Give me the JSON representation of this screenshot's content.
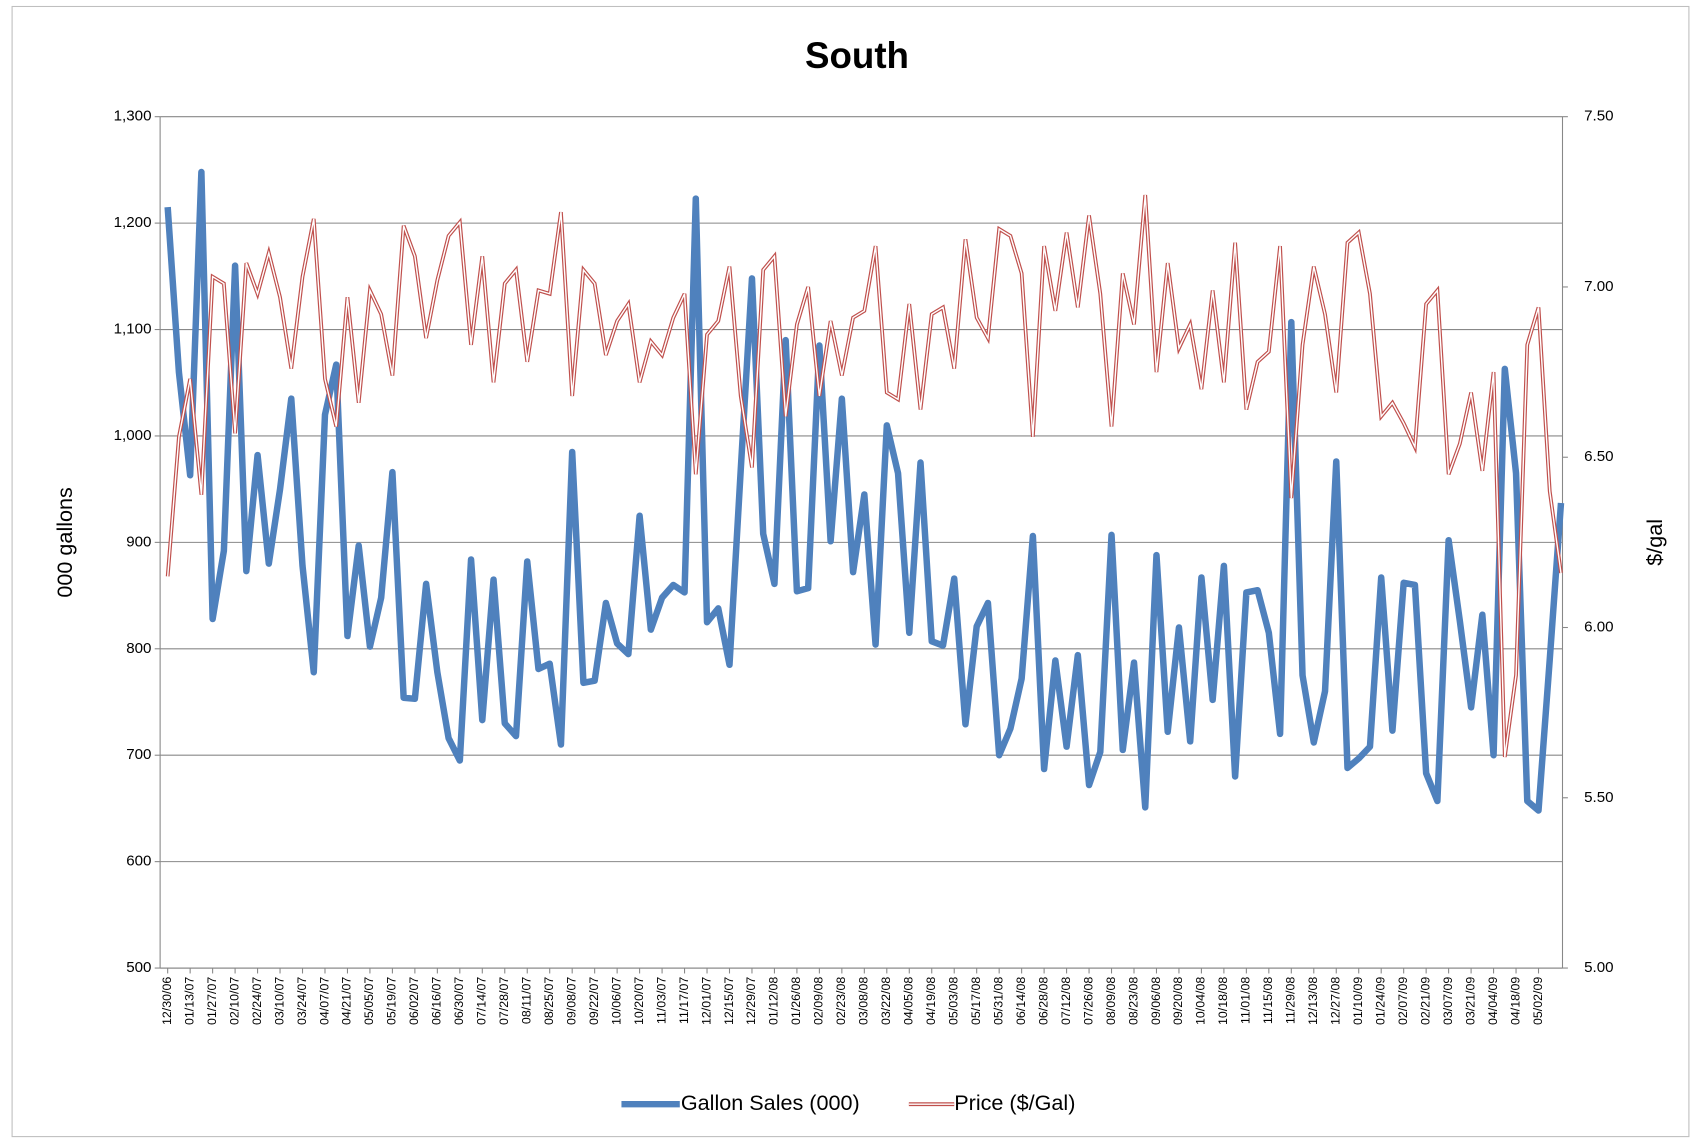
{
  "chart_data": {
    "type": "line",
    "title": "South",
    "y_label": "000 gallons",
    "y2_label": "$/gal",
    "grid": true,
    "legend": "bottom",
    "categories": [
      "12/30/06",
      null,
      "01/13/07",
      null,
      "01/27/07",
      null,
      "02/10/07",
      null,
      "02/24/07",
      null,
      "03/10/07",
      null,
      "03/24/07",
      null,
      "04/07/07",
      null,
      "04/21/07",
      null,
      "05/05/07",
      null,
      "05/19/07",
      null,
      "06/02/07",
      null,
      "06/16/07",
      null,
      "06/30/07",
      null,
      "07/14/07",
      null,
      "07/28/07",
      null,
      "08/11/07",
      null,
      "08/25/07",
      null,
      "09/08/07",
      null,
      "09/22/07",
      null,
      "10/06/07",
      null,
      "10/20/07",
      null,
      "11/03/07",
      null,
      "11/17/07",
      null,
      "12/01/07",
      null,
      "12/15/07",
      null,
      "12/29/07",
      null,
      "01/12/08",
      null,
      "01/26/08",
      null,
      "02/09/08",
      null,
      "02/23/08",
      null,
      "03/08/08",
      null,
      "03/22/08",
      null,
      "04/05/08",
      null,
      "04/19/08",
      null,
      "05/03/08",
      null,
      "05/17/08",
      null,
      "05/31/08",
      null,
      "06/14/08",
      null,
      "06/28/08",
      null,
      "07/12/08",
      null,
      "07/26/08",
      null,
      "08/09/08",
      null,
      "08/23/08",
      null,
      "09/06/08",
      null,
      "09/20/08",
      null,
      "10/04/08",
      null,
      "10/18/08",
      null,
      "11/01/08",
      null,
      "11/15/08",
      null,
      "11/29/08",
      null,
      "12/13/08",
      null,
      "12/27/08",
      null,
      "01/10/09",
      null,
      "01/24/09",
      null,
      "02/07/09",
      null,
      "02/21/09",
      null,
      "03/07/09",
      null,
      "03/21/09",
      null,
      "04/04/09",
      null,
      "04/18/09",
      null,
      "05/02/09",
      null,
      null
    ],
    "series": [
      {
        "name": "Gallon Sales (000)",
        "color": "#4f81bd",
        "axis": "y",
        "values": [
          1215,
          1060,
          963,
          1248,
          828,
          892,
          1160,
          873,
          982,
          880,
          950,
          1035,
          878,
          778,
          1020,
          1067,
          812,
          897,
          802,
          848,
          966,
          754,
          753,
          861,
          778,
          716,
          695,
          884,
          733,
          865,
          730,
          718,
          882,
          781,
          786,
          710,
          985,
          768,
          770,
          843,
          805,
          795,
          925,
          818,
          848,
          860,
          853,
          1223,
          825,
          838,
          785,
          968,
          1148,
          908,
          861,
          1090,
          854,
          857,
          1085,
          901,
          1035,
          872,
          945,
          804,
          1010,
          965,
          815,
          975,
          807,
          803,
          866,
          729,
          821,
          843,
          700,
          725,
          772,
          906,
          687,
          789,
          708,
          794,
          672,
          703,
          907,
          705,
          787,
          651,
          888,
          722,
          820,
          713,
          867,
          752,
          878,
          680,
          853,
          855,
          815,
          720,
          1107,
          775,
          712,
          760,
          976,
          688,
          697,
          708,
          867,
          723,
          862,
          860,
          683,
          657,
          902,
          826,
          745,
          832,
          700,
          1063,
          965,
          657,
          648,
          790,
          937
        ]
      },
      {
        "name": "Price ($/Gal)",
        "color": "#c0504d",
        "axis": "y2",
        "values": [
          6.15,
          6.56,
          6.73,
          6.39,
          7.03,
          7.01,
          6.57,
          7.07,
          6.98,
          7.1,
          6.97,
          6.76,
          7.03,
          7.2,
          6.73,
          6.59,
          6.97,
          6.66,
          6.99,
          6.92,
          6.74,
          7.18,
          7.09,
          6.85,
          7.02,
          7.15,
          7.19,
          6.83,
          7.09,
          6.72,
          7.01,
          7.05,
          6.78,
          6.99,
          6.98,
          7.22,
          6.68,
          7.05,
          7.01,
          6.8,
          6.9,
          6.95,
          6.72,
          6.84,
          6.8,
          6.91,
          6.98,
          6.45,
          6.86,
          6.9,
          7.06,
          6.68,
          6.47,
          7.05,
          7.09,
          6.62,
          6.89,
          7.0,
          6.68,
          6.9,
          6.74,
          6.91,
          6.93,
          7.12,
          6.69,
          6.67,
          6.95,
          6.64,
          6.92,
          6.94,
          6.76,
          7.14,
          6.91,
          6.85,
          7.17,
          7.15,
          7.04,
          6.56,
          7.12,
          6.93,
          7.16,
          6.94,
          7.21,
          6.98,
          6.59,
          7.04,
          6.89,
          7.27,
          6.75,
          7.07,
          6.82,
          6.89,
          6.7,
          6.99,
          6.72,
          7.13,
          6.64,
          6.78,
          6.81,
          7.12,
          6.38,
          6.83,
          7.06,
          6.92,
          6.69,
          7.13,
          7.16,
          6.98,
          6.62,
          6.66,
          6.6,
          6.53,
          6.95,
          6.99,
          6.45,
          6.54,
          6.69,
          6.46,
          6.75,
          5.62,
          5.86,
          6.83,
          6.94,
          6.4,
          6.16
        ]
      }
    ],
    "ylim": [
      500,
      1300
    ],
    "yticks": [
      500,
      600,
      700,
      800,
      900,
      {
        "value": 1000,
        "label": "1,000"
      },
      {
        "value": 1100,
        "label": "1,100"
      },
      {
        "value": 1200,
        "label": "1,200"
      },
      {
        "value": 1300,
        "label": "1,300"
      }
    ],
    "y2lim": [
      5,
      7.5
    ],
    "y2ticks": [
      {
        "value": 5,
        "label": "5.00"
      },
      {
        "value": 5.5,
        "label": "5.50"
      },
      {
        "value": 6,
        "label": "6.00"
      },
      {
        "value": 6.5,
        "label": "6.50"
      },
      {
        "value": 7,
        "label": "7.00"
      },
      {
        "value": 7.5,
        "label": "7.50"
      }
    ]
  }
}
